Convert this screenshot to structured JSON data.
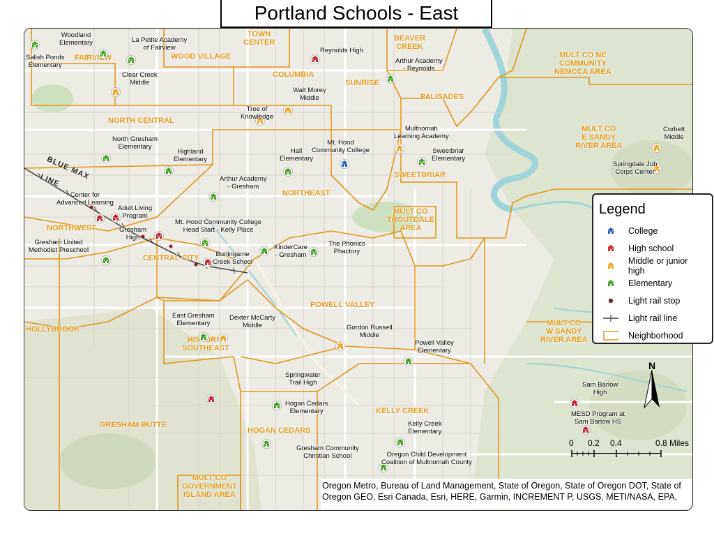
{
  "title": "Portland Schools - East",
  "colors": {
    "college": "#2b5fb8",
    "high_school": "#c8232c",
    "middle": "#f2a51a",
    "elementary": "#45a41f",
    "neighborhood": "#e0981b",
    "rail_stop": "#8b1f2a",
    "rail_line": "#444444",
    "water": "#9fd4d8"
  },
  "legend": {
    "title": "Legend",
    "items": [
      {
        "label": "College",
        "symbol": "college-icon"
      },
      {
        "label": "High school",
        "symbol": "high-school-icon"
      },
      {
        "label": "Middle or junior high",
        "symbol": "middle-school-icon"
      },
      {
        "label": "Elementary",
        "symbol": "elementary-icon"
      },
      {
        "label": "Light rail stop",
        "symbol": "rail-stop-icon"
      },
      {
        "label": "Light rail line",
        "symbol": "rail-line-icon"
      },
      {
        "label": "Neighborhood",
        "symbol": "neighborhood-box-icon"
      }
    ]
  },
  "rail_label": [
    "BLUE MAX",
    "LINE"
  ],
  "neighborhoods": [
    {
      "name": "FAIRVIEW"
    },
    {
      "name": "WOOD VILLAGE"
    },
    {
      "name": "TOWN CENTER"
    },
    {
      "name": "BEAVER CREEK"
    },
    {
      "name": "COLUMBIA"
    },
    {
      "name": "SUNRISE"
    },
    {
      "name": "PALISADES"
    },
    {
      "name": "MULT CO NE COMMUNITY NEMCCA AREA"
    },
    {
      "name": "NORTH CENTRAL"
    },
    {
      "name": "MULT CO E SANDY RIVER AREA"
    },
    {
      "name": "SWEETBRIAR"
    },
    {
      "name": "NORTHEAST"
    },
    {
      "name": "MULT CO TROUTDALE AREA"
    },
    {
      "name": "NORTHWEST"
    },
    {
      "name": "CENTRAL CITY"
    },
    {
      "name": "POWELL VALLEY"
    },
    {
      "name": "HOLLYBROOK"
    },
    {
      "name": "HISTORIC SOUTHEAST"
    },
    {
      "name": "MULT CO W SANDY RIVER AREA"
    },
    {
      "name": "GRESHAM BUTTE"
    },
    {
      "name": "HOGAN CEDARS"
    },
    {
      "name": "KELLY CREEK"
    },
    {
      "name": "MULT CO GOVERNMENT ISLAND AREA"
    }
  ],
  "schools": [
    {
      "name": "Woodland Elementary",
      "type": "elementary"
    },
    {
      "name": "Salish Ponds Elementary",
      "type": "elementary"
    },
    {
      "name": "La Petite Academy of Fairview",
      "type": "elementary"
    },
    {
      "name": "Reynolds High",
      "type": "high_school"
    },
    {
      "name": "Arthur Academy - Reynolds",
      "type": "elementary"
    },
    {
      "name": "Clear Creek Middle",
      "type": "middle"
    },
    {
      "name": "Walt Morey Middle",
      "type": "middle"
    },
    {
      "name": "Tree of Knowledge",
      "type": "middle"
    },
    {
      "name": "Multnomah Learning Academy",
      "type": "middle"
    },
    {
      "name": "Mt. Hood Community College",
      "type": "college"
    },
    {
      "name": "Hall Elementary",
      "type": "elementary"
    },
    {
      "name": "North Gresham Elementary",
      "type": "elementary"
    },
    {
      "name": "Highland Elementary",
      "type": "elementary"
    },
    {
      "name": "Sweetbriar Elementary",
      "type": "elementary"
    },
    {
      "name": "Corbett Middle",
      "type": "middle"
    },
    {
      "name": "Springdale Job Corps Center",
      "type": "middle"
    },
    {
      "name": "Arthur Academy - Gresham",
      "type": "elementary"
    },
    {
      "name": "Center for Advanced Learning",
      "type": "high_school"
    },
    {
      "name": "Adult Living Program",
      "type": "high_school"
    },
    {
      "name": "Gresham High",
      "type": "high_school"
    },
    {
      "name": "Mt. Hood Community College Head Start - Kelly Place",
      "type": "elementary"
    },
    {
      "name": "KinderCare - Gresham",
      "type": "elementary"
    },
    {
      "name": "The Phonics Phactory",
      "type": "elementary"
    },
    {
      "name": "Gresham United Methodist Preschool",
      "type": "elementary"
    },
    {
      "name": "Burlingame Creek School",
      "type": "high_school"
    },
    {
      "name": "East Gresham Elementary",
      "type": "elementary"
    },
    {
      "name": "Dexter McCarty Middle",
      "type": "middle"
    },
    {
      "name": "Gordon Russell Middle",
      "type": "middle"
    },
    {
      "name": "Powell Valley Elementary",
      "type": "elementary"
    },
    {
      "name": "Springwater Trail High",
      "type": "high_school"
    },
    {
      "name": "Hogan Cedars Elementary",
      "type": "elementary"
    },
    {
      "name": "Sam Barlow High",
      "type": "high_school"
    },
    {
      "name": "MESD Program at Sam Barlow HS",
      "type": "high_school"
    },
    {
      "name": "Kelly Creek Elementary",
      "type": "elementary"
    },
    {
      "name": "Gresham Community Christian School",
      "type": "elementary"
    },
    {
      "name": "Oregon Child Development Coalition of Multnomah County",
      "type": "elementary"
    }
  ],
  "scale": {
    "ticks": [
      "0",
      "0.2",
      "0.4",
      "0.8 Miles"
    ]
  },
  "north_label": "N",
  "credits": "Oregon Metro, Bureau of Land Management, State of Oregon, State of Oregon DOT, State of Oregon GEO, Esri Canada, Esri, HERE, Garmin, INCREMENT P, USGS, METI/NASA, EPA,"
}
